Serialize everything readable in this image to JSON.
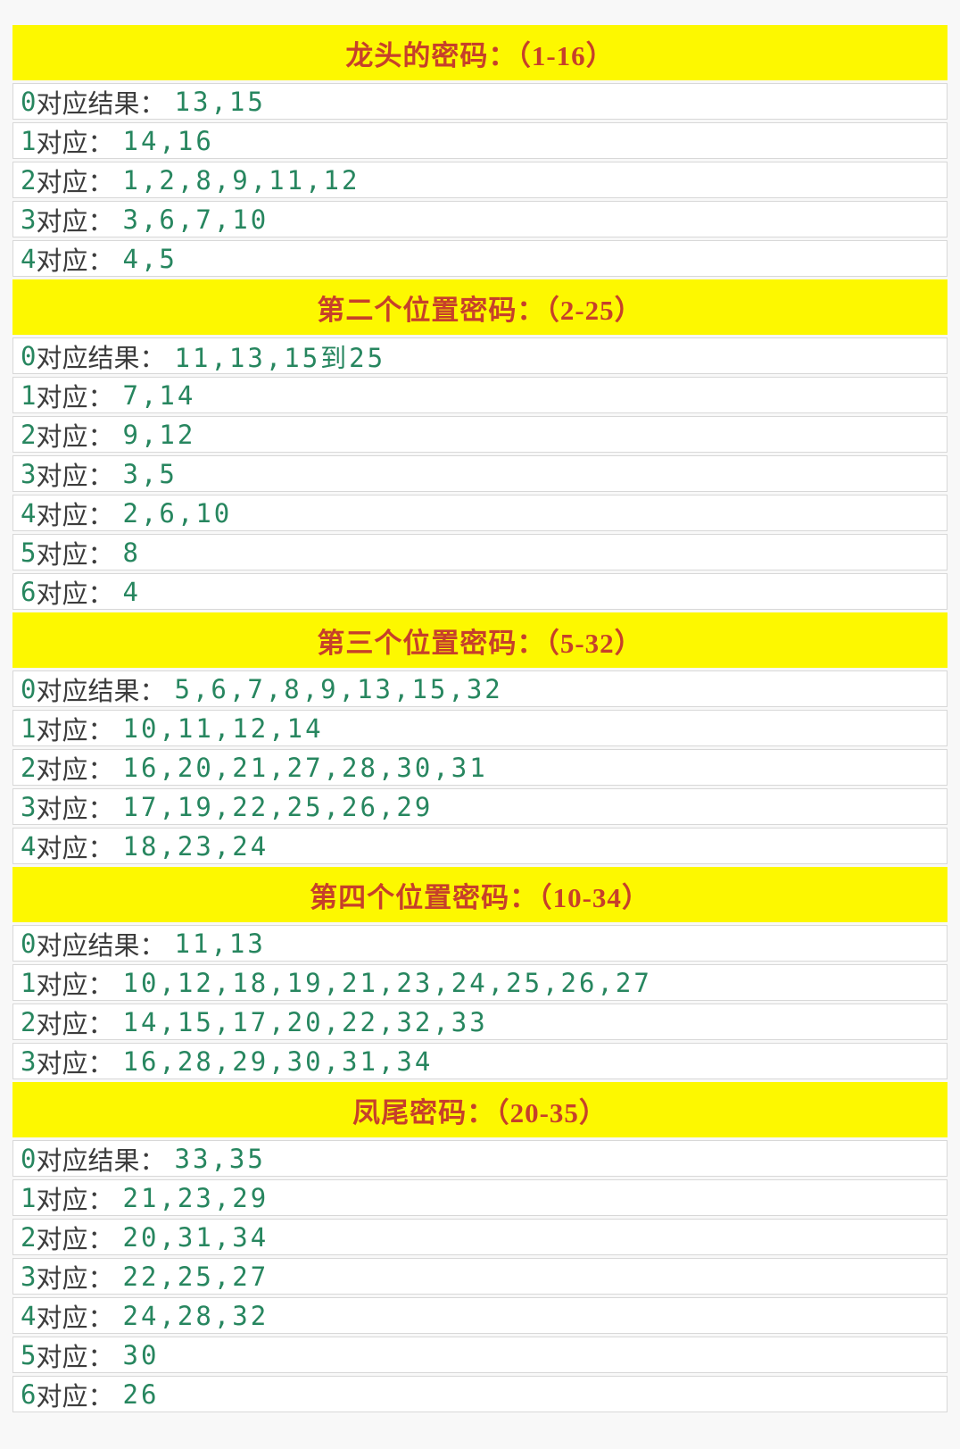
{
  "colors": {
    "header_bg": "#fdf800",
    "header_text": "#c6402a",
    "number": "#27865f",
    "label": "#3c3c3c",
    "row_bg": "#ffffff",
    "row_border": "#d8d8d8",
    "page_bg": "#f8f8f8"
  },
  "sections": [
    {
      "title": "龙头的密码：（1-16）",
      "rows": [
        {
          "prefix": "0",
          "label": "对应结果：",
          "value": "13,15"
        },
        {
          "prefix": "1",
          "label": "对应：",
          "value": "14,16"
        },
        {
          "prefix": "2",
          "label": "对应：",
          "value": "1,2,8,9,11,12"
        },
        {
          "prefix": "3",
          "label": "对应：",
          "value": "3,6,7,10"
        },
        {
          "prefix": "4",
          "label": "对应：",
          "value": "4,5"
        }
      ]
    },
    {
      "title": "第二个位置密码：（2-25）",
      "rows": [
        {
          "prefix": "0",
          "label": "对应结果：",
          "value": "11,13,15到25"
        },
        {
          "prefix": "1",
          "label": "对应：",
          "value": "7,14"
        },
        {
          "prefix": "2",
          "label": "对应：",
          "value": "9,12"
        },
        {
          "prefix": "3",
          "label": "对应：",
          "value": "3,5"
        },
        {
          "prefix": "4",
          "label": "对应：",
          "value": "2,6,10"
        },
        {
          "prefix": "5",
          "label": "对应：",
          "value": "8"
        },
        {
          "prefix": "6",
          "label": "对应：",
          "value": "4"
        }
      ]
    },
    {
      "title": "第三个位置密码：（5-32）",
      "rows": [
        {
          "prefix": "0",
          "label": "对应结果：",
          "value": "5,6,7,8,9,13,15,32"
        },
        {
          "prefix": "1",
          "label": "对应：",
          "value": "10,11,12,14"
        },
        {
          "prefix": "2",
          "label": "对应：",
          "value": "16,20,21,27,28,30,31"
        },
        {
          "prefix": "3",
          "label": "对应：",
          "value": "17,19,22,25,26,29"
        },
        {
          "prefix": "4",
          "label": "对应：",
          "value": "18,23,24"
        }
      ]
    },
    {
      "title": "第四个位置密码：（10-34）",
      "rows": [
        {
          "prefix": "0",
          "label": "对应结果：",
          "value": "11,13"
        },
        {
          "prefix": "1",
          "label": "对应：",
          "value": "10,12,18,19,21,23,24,25,26,27"
        },
        {
          "prefix": "2",
          "label": "对应：",
          "value": "14,15,17,20,22,32,33"
        },
        {
          "prefix": "3",
          "label": "对应：",
          "value": "16,28,29,30,31,34"
        }
      ]
    },
    {
      "title": "凤尾密码：（20-35）",
      "rows": [
        {
          "prefix": "0",
          "label": "对应结果：",
          "value": "33,35"
        },
        {
          "prefix": "1",
          "label": "对应：",
          "value": "21,23,29"
        },
        {
          "prefix": "2",
          "label": "对应：",
          "value": "20,31,34"
        },
        {
          "prefix": "3",
          "label": "对应：",
          "value": "22,25,27"
        },
        {
          "prefix": "4",
          "label": "对应：",
          "value": "24,28,32"
        },
        {
          "prefix": "5",
          "label": "对应：",
          "value": "30"
        },
        {
          "prefix": "6",
          "label": "对应：",
          "value": "26"
        }
      ]
    }
  ]
}
